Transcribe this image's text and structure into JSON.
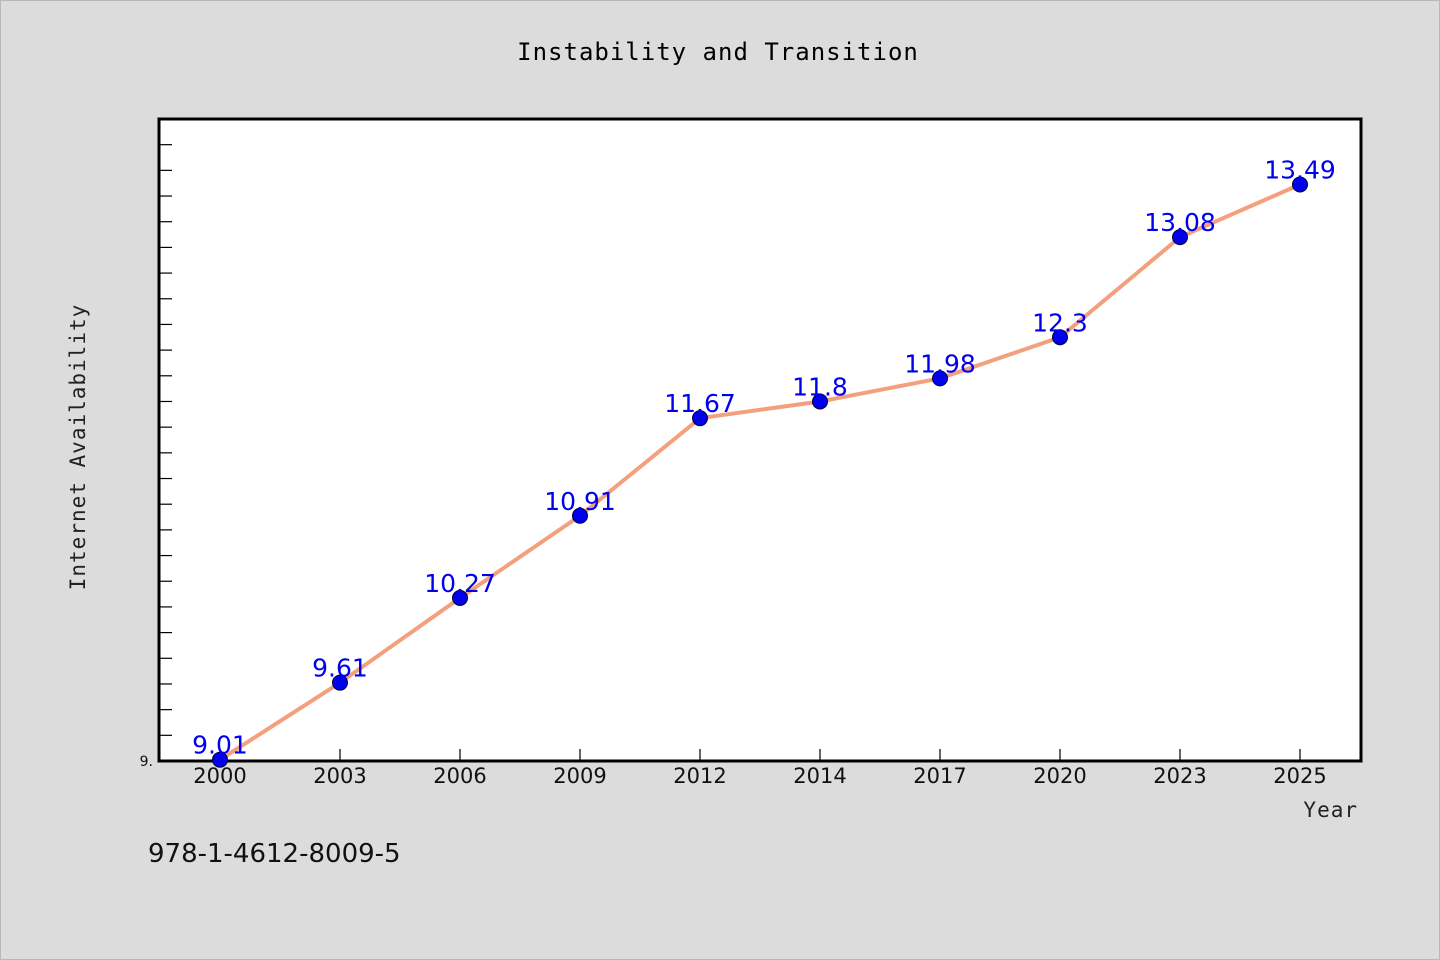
{
  "chart_data": {
    "type": "line",
    "title": "Instability and Transition",
    "xlabel": "Year",
    "ylabel": "Internet Availability",
    "categories": [
      "2000",
      "2003",
      "2006",
      "2009",
      "2012",
      "2014",
      "2017",
      "2020",
      "2023",
      "2025"
    ],
    "series": [
      {
        "values": [
          9.01,
          9.61,
          10.27,
          10.91,
          11.67,
          11.8,
          11.98,
          12.3,
          13.08,
          13.49
        ],
        "labels": [
          "9.01",
          "9.61",
          "10.27",
          "10.91",
          "11.67",
          "11.8",
          "11.98",
          "12.3",
          "13.08",
          "13.49"
        ]
      }
    ],
    "ytick_label": "9.",
    "ylim": [
      9.0,
      14.0
    ],
    "grid": false,
    "legend": "none",
    "colors": {
      "line": "#f4a07e",
      "marker": "#0000ee",
      "data_label": "#0000ee",
      "plot_background": "#ffffff",
      "page_background": "#dcdcdc"
    }
  },
  "footer": {
    "isbn": "978-1-4612-8009-5"
  }
}
